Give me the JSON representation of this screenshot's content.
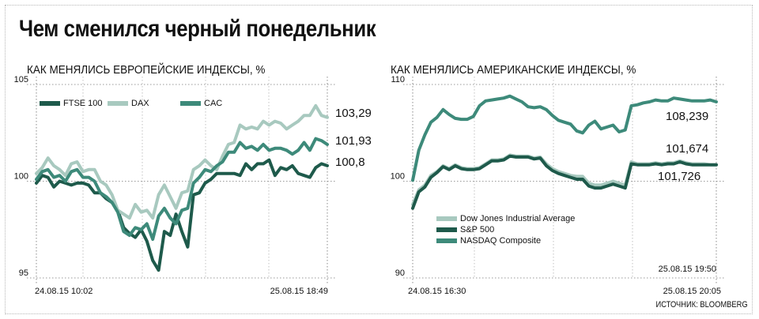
{
  "headline": "Чем сменился черный понедельник",
  "source": "ИСТОЧНИК: BLOOMBERG",
  "chart_data": [
    {
      "type": "line",
      "title": "КАК МЕНЯЛИСЬ ЕВРОПЕЙСКИЕ ИНДЕКСЫ, %",
      "ylim": [
        95,
        105
      ],
      "yticks": [
        95,
        100,
        105
      ],
      "x_range": [
        "24.08.15 10:02",
        "25.08.15 18:49"
      ],
      "x_tick_labels": [
        "24.08.15 10:02",
        "25.08.15 18:49"
      ],
      "legend_position": "top-left",
      "grid": true,
      "series": [
        {
          "name": "FTSE 100",
          "color": "#1e5a4b",
          "end_label": "100,8",
          "x": [
            0,
            0.02,
            0.04,
            0.06,
            0.08,
            0.1,
            0.12,
            0.14,
            0.16,
            0.18,
            0.2,
            0.22,
            0.24,
            0.26,
            0.28,
            0.3,
            0.32,
            0.34,
            0.36,
            0.38,
            0.4,
            0.42,
            0.44,
            0.46,
            0.48,
            0.5,
            0.52,
            0.54,
            0.56,
            0.58,
            0.6,
            0.62,
            0.64,
            0.66,
            0.68,
            0.7,
            0.72,
            0.74,
            0.76,
            0.78,
            0.8,
            0.82,
            0.84,
            0.86,
            0.88,
            0.9,
            0.92,
            0.94,
            0.96,
            0.98,
            1.0
          ],
          "values": [
            99.9,
            100.3,
            100.2,
            99.7,
            100.0,
            99.9,
            99.8,
            99.9,
            99.9,
            99.8,
            99.4,
            99.4,
            99.1,
            98.9,
            98.5,
            97.6,
            97.3,
            97.1,
            97.5,
            96.9,
            95.9,
            95.4,
            97.4,
            97.2,
            98.3,
            97.4,
            96.6,
            99.3,
            99.4,
            99.9,
            100.1,
            100.4,
            100.4,
            100.4,
            100.4,
            100.3,
            100.9,
            100.6,
            100.9,
            100.9,
            101.1,
            100.3,
            100.7,
            100.6,
            100.8,
            100.4,
            100.3,
            100.2,
            100.7,
            100.9,
            100.8
          ]
        },
        {
          "name": "DAX",
          "color": "#a8c9bf",
          "end_label": "103,29",
          "x": [
            0,
            0.02,
            0.04,
            0.06,
            0.08,
            0.1,
            0.12,
            0.14,
            0.16,
            0.18,
            0.2,
            0.22,
            0.24,
            0.26,
            0.28,
            0.3,
            0.32,
            0.34,
            0.36,
            0.38,
            0.4,
            0.42,
            0.44,
            0.46,
            0.48,
            0.5,
            0.52,
            0.54,
            0.56,
            0.58,
            0.6,
            0.62,
            0.64,
            0.66,
            0.68,
            0.7,
            0.72,
            0.74,
            0.76,
            0.78,
            0.8,
            0.82,
            0.84,
            0.86,
            0.88,
            0.9,
            0.92,
            0.94,
            0.96,
            0.98,
            1.0
          ],
          "values": [
            100.4,
            100.7,
            101.2,
            100.8,
            100.6,
            100.3,
            100.9,
            101.0,
            100.5,
            100.6,
            100.6,
            100.0,
            99.8,
            99.3,
            98.5,
            98.3,
            98.1,
            98.8,
            98.4,
            98.5,
            98.1,
            99.3,
            99.8,
            99.2,
            98.6,
            99.4,
            99.5,
            100.6,
            100.8,
            101.1,
            100.8,
            100.6,
            101.3,
            101.9,
            102.0,
            102.9,
            102.7,
            102.8,
            102.7,
            103.1,
            102.9,
            103.1,
            103.0,
            102.7,
            102.9,
            103.1,
            103.4,
            103.4,
            103.9,
            103.4,
            103.3
          ]
        },
        {
          "name": "CAC",
          "color": "#3d8a7a",
          "end_label": "101,93",
          "x": [
            0,
            0.02,
            0.04,
            0.06,
            0.08,
            0.1,
            0.12,
            0.14,
            0.16,
            0.18,
            0.2,
            0.22,
            0.24,
            0.26,
            0.28,
            0.3,
            0.32,
            0.34,
            0.36,
            0.38,
            0.4,
            0.42,
            0.44,
            0.46,
            0.48,
            0.5,
            0.52,
            0.54,
            0.56,
            0.58,
            0.6,
            0.62,
            0.64,
            0.66,
            0.68,
            0.7,
            0.72,
            0.74,
            0.76,
            0.78,
            0.8,
            0.82,
            0.84,
            0.86,
            0.88,
            0.9,
            0.92,
            0.94,
            0.96,
            0.98,
            1.0
          ],
          "values": [
            100.1,
            100.5,
            100.6,
            100.2,
            100.3,
            100.0,
            100.5,
            100.6,
            100.2,
            100.2,
            100.0,
            99.4,
            99.2,
            98.9,
            98.4,
            97.4,
            97.2,
            97.6,
            97.5,
            97.8,
            97.0,
            98.2,
            98.6,
            98.1,
            97.8,
            98.5,
            98.6,
            99.9,
            100.2,
            100.6,
            100.5,
            100.8,
            101.0,
            101.5,
            101.5,
            102.0,
            101.7,
            101.8,
            101.6,
            101.9,
            101.6,
            101.7,
            101.7,
            101.6,
            101.4,
            101.6,
            102.0,
            101.6,
            102.2,
            102.1,
            101.9
          ]
        }
      ]
    },
    {
      "type": "line",
      "title": "КАК МЕНЯЛИСЬ АМЕРИКАНСКИЕ ИНДЕКСЫ, %",
      "ylim": [
        90,
        110
      ],
      "yticks": [
        90,
        100,
        110
      ],
      "x_range": [
        "24.08.15 16:30",
        "25.08.15 20:05"
      ],
      "x_tick_labels": [
        "24.08.15 16:30",
        "25.08.15 20:05"
      ],
      "marker_label": "25.08.15 19:50",
      "legend_position": "bottom-left",
      "grid": true,
      "series": [
        {
          "name": "Dow Jones Industrial Average",
          "color": "#a8c9bf",
          "end_label": "101,674",
          "x": [
            0,
            0.02,
            0.04,
            0.06,
            0.08,
            0.1,
            0.12,
            0.14,
            0.16,
            0.18,
            0.2,
            0.22,
            0.24,
            0.26,
            0.28,
            0.3,
            0.32,
            0.34,
            0.36,
            0.38,
            0.4,
            0.42,
            0.44,
            0.46,
            0.48,
            0.5,
            0.52,
            0.54,
            0.56,
            0.58,
            0.6,
            0.62,
            0.64,
            0.66,
            0.68,
            0.7,
            0.72,
            0.74,
            0.76,
            0.78,
            0.8,
            0.82,
            0.84,
            0.86,
            0.88,
            0.9,
            0.92,
            0.94,
            0.96,
            0.98,
            1.0
          ],
          "values": [
            97.6,
            99.1,
            99.6,
            100.6,
            101.0,
            101.6,
            101.3,
            101.7,
            101.4,
            101.3,
            101.3,
            101.4,
            101.8,
            102.2,
            102.2,
            102.3,
            102.7,
            102.6,
            102.6,
            102.6,
            102.4,
            102.5,
            101.8,
            101.3,
            101.0,
            100.8,
            100.6,
            100.5,
            100.5,
            99.8,
            99.6,
            99.6,
            99.8,
            100.0,
            99.8,
            99.6,
            102.0,
            101.8,
            101.8,
            101.8,
            101.9,
            101.8,
            101.9,
            101.9,
            102.1,
            101.9,
            101.8,
            101.8,
            101.8,
            101.7,
            101.7
          ]
        },
        {
          "name": "S&P 500",
          "color": "#1e5a4b",
          "end_label": "101,726",
          "x": [
            0,
            0.02,
            0.04,
            0.06,
            0.08,
            0.1,
            0.12,
            0.14,
            0.16,
            0.18,
            0.2,
            0.22,
            0.24,
            0.26,
            0.28,
            0.3,
            0.32,
            0.34,
            0.36,
            0.38,
            0.4,
            0.42,
            0.44,
            0.46,
            0.48,
            0.5,
            0.52,
            0.54,
            0.56,
            0.58,
            0.6,
            0.62,
            0.64,
            0.66,
            0.68,
            0.7,
            0.72,
            0.74,
            0.76,
            0.78,
            0.8,
            0.82,
            0.84,
            0.86,
            0.88,
            0.9,
            0.92,
            0.94,
            0.96,
            0.98,
            1.0
          ],
          "values": [
            97.2,
            98.9,
            99.4,
            100.4,
            100.9,
            101.5,
            101.2,
            101.6,
            101.3,
            101.2,
            101.2,
            101.3,
            101.7,
            102.1,
            102.1,
            102.2,
            102.6,
            102.5,
            102.5,
            102.5,
            102.3,
            102.4,
            101.6,
            101.1,
            100.8,
            100.6,
            100.4,
            100.2,
            100.2,
            99.5,
            99.3,
            99.3,
            99.5,
            99.7,
            99.5,
            99.3,
            101.8,
            101.7,
            101.7,
            101.7,
            101.8,
            101.7,
            101.8,
            101.8,
            102.0,
            101.8,
            101.7,
            101.7,
            101.7,
            101.7,
            101.7
          ]
        },
        {
          "name": "NASDAQ Composite",
          "color": "#3d8a7a",
          "end_label": "108,239",
          "x": [
            0,
            0.02,
            0.04,
            0.06,
            0.08,
            0.1,
            0.12,
            0.14,
            0.16,
            0.18,
            0.2,
            0.22,
            0.24,
            0.26,
            0.28,
            0.3,
            0.32,
            0.34,
            0.36,
            0.38,
            0.4,
            0.42,
            0.44,
            0.46,
            0.48,
            0.5,
            0.52,
            0.54,
            0.56,
            0.58,
            0.6,
            0.62,
            0.64,
            0.66,
            0.68,
            0.7,
            0.72,
            0.74,
            0.76,
            0.78,
            0.8,
            0.82,
            0.84,
            0.86,
            0.88,
            0.9,
            0.92,
            0.94,
            0.96,
            0.98,
            1.0
          ],
          "values": [
            100.1,
            103.2,
            104.8,
            106.1,
            106.6,
            107.4,
            106.9,
            106.5,
            106.4,
            106.4,
            106.7,
            107.8,
            108.3,
            108.4,
            108.5,
            108.6,
            108.8,
            108.5,
            108.2,
            107.7,
            107.6,
            107.7,
            107.4,
            106.8,
            106.3,
            106.1,
            105.9,
            105.2,
            105.0,
            105.8,
            106.2,
            105.4,
            105.6,
            105.8,
            105.1,
            105.3,
            107.8,
            107.9,
            108.1,
            108.2,
            108.4,
            108.3,
            108.3,
            108.6,
            108.5,
            108.4,
            108.3,
            108.3,
            108.3,
            108.4,
            108.2
          ]
        }
      ]
    }
  ]
}
